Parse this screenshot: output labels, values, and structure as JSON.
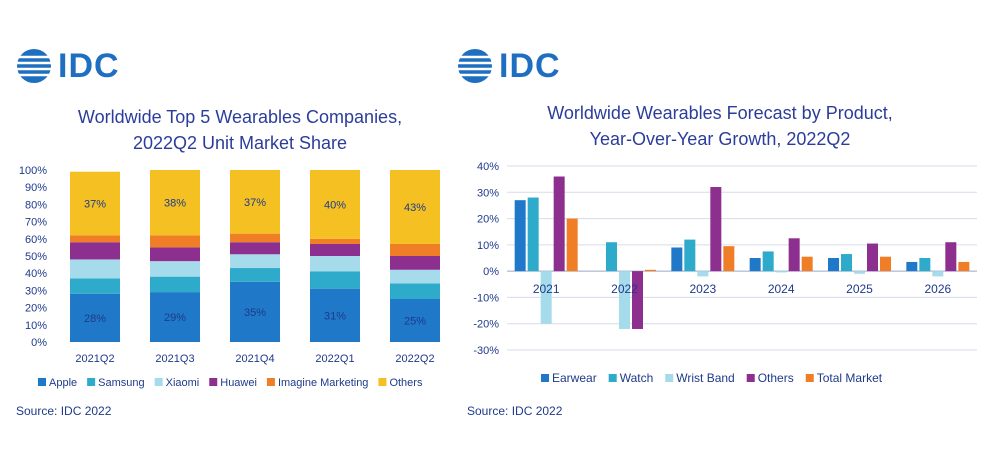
{
  "colors": {
    "brand": "#1f6fc1",
    "title": "#2b3d9b"
  },
  "left": {
    "logo_text": "IDC",
    "title_line1": "Worldwide Top 5 Wearables Companies,",
    "title_line2": "2022Q2 Unit Market Share",
    "source": "Source: IDC 2022"
  },
  "right": {
    "logo_text": "IDC",
    "title_line1": "Worldwide Wearables Forecast by Product,",
    "title_line2": "Year-Over-Year Growth, 2022Q2",
    "source": "Source: IDC 2022"
  },
  "chart_data": [
    {
      "type": "bar",
      "stacked": true,
      "title": "Worldwide Top 5 Wearables Companies, 2022Q2 Unit Market Share",
      "categories": [
        "2021Q2",
        "2021Q3",
        "2021Q4",
        "2022Q1",
        "2022Q2"
      ],
      "ylim": [
        0,
        100
      ],
      "yticks": [
        "0%",
        "10%",
        "20%",
        "30%",
        "40%",
        "50%",
        "60%",
        "70%",
        "80%",
        "90%",
        "100%"
      ],
      "grid": false,
      "legend_position": "bottom",
      "series": [
        {
          "name": "Apple",
          "color": "#1f78c8",
          "values": [
            28,
            29,
            35,
            31,
            25
          ],
          "labels": [
            "28%",
            "29%",
            "35%",
            "31%",
            "25%"
          ]
        },
        {
          "name": "Samsung",
          "color": "#2eaacb",
          "values": [
            9,
            9,
            8,
            10,
            9
          ],
          "labels": []
        },
        {
          "name": "Xiaomi",
          "color": "#a5dbea",
          "values": [
            11,
            9,
            8,
            9,
            8
          ],
          "labels": []
        },
        {
          "name": "Huawei",
          "color": "#8d2f8f",
          "values": [
            10,
            8,
            7,
            7,
            8
          ],
          "labels": []
        },
        {
          "name": "Imagine Marketing",
          "color": "#f07e26",
          "values": [
            4,
            7,
            5,
            3,
            7
          ],
          "labels": []
        },
        {
          "name": "Others",
          "color": "#f4c022",
          "values": [
            37,
            38,
            37,
            40,
            43
          ],
          "labels": [
            "37%",
            "38%",
            "37%",
            "40%",
            "43%"
          ]
        }
      ]
    },
    {
      "type": "bar",
      "title": "Worldwide Wearables Forecast by Product, Year-Over-Year Growth, 2022Q2",
      "categories": [
        "2021",
        "2022",
        "2023",
        "2024",
        "2025",
        "2026"
      ],
      "ylim": [
        -30,
        40
      ],
      "yticks": [
        "-30%",
        "-20%",
        "-10%",
        "0%",
        "10%",
        "20%",
        "30%",
        "40%"
      ],
      "grid": true,
      "legend_position": "bottom",
      "series": [
        {
          "name": "Earwear",
          "color": "#1f78c8",
          "values": [
            27,
            0,
            9,
            5,
            5,
            3.5
          ]
        },
        {
          "name": "Watch",
          "color": "#2eaacb",
          "values": [
            28,
            11,
            12,
            7.5,
            6.5,
            5
          ]
        },
        {
          "name": "Wrist Band",
          "color": "#a5dbea",
          "values": [
            -20,
            -22,
            -2,
            -0.5,
            -1,
            -2
          ]
        },
        {
          "name": "Others",
          "color": "#8d2f8f",
          "values": [
            36,
            -22,
            32,
            12.5,
            10.5,
            11
          ]
        },
        {
          "name": "Total Market",
          "color": "#f07e26",
          "values": [
            20,
            0.5,
            9.5,
            5.5,
            5.5,
            3.5
          ]
        }
      ]
    }
  ]
}
